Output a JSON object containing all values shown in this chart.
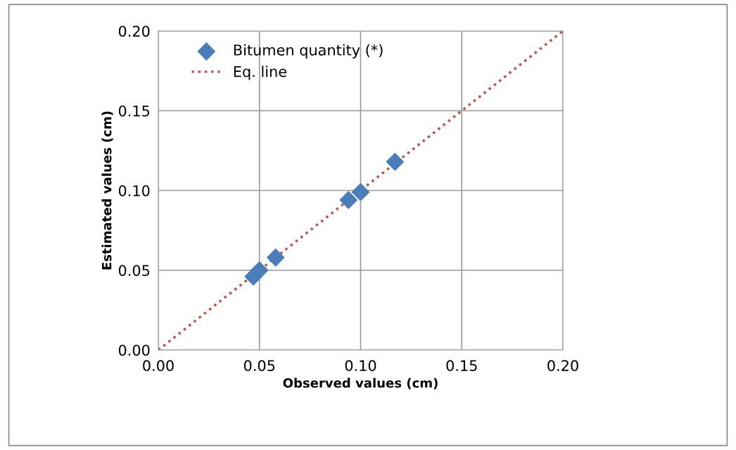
{
  "chart_data": {
    "type": "scatter",
    "xlabel": "Observed values (cm)",
    "ylabel": "Estimated values (cm)",
    "series": [
      {
        "name": "Bitumen quantity (*)",
        "color": "#4a7ebb",
        "marker": "diamond",
        "x": [
          0.047,
          0.05,
          0.058,
          0.094,
          0.1,
          0.117
        ],
        "values": [
          0.046,
          0.05,
          0.058,
          0.094,
          0.099,
          0.118
        ]
      },
      {
        "name": "Eq. line",
        "type": "line",
        "color": "#c0504d",
        "marker": "none",
        "line_style": "dotted",
        "x": [
          0.0,
          0.2
        ],
        "values": [
          0.0,
          0.2
        ]
      }
    ],
    "xlim": [
      0,
      0.2
    ],
    "ylim": [
      0,
      0.2
    ],
    "xticks": [
      {
        "value": 0,
        "label": "0.00"
      },
      {
        "value": 0.05,
        "label": "0.05"
      },
      {
        "value": 0.1,
        "label": "0.10"
      },
      {
        "value": 0.15,
        "label": "0.15"
      },
      {
        "value": 0.2,
        "label": "0.20"
      }
    ],
    "yticks": [
      {
        "value": 0,
        "label": "0.00"
      },
      {
        "value": 0.05,
        "label": "0.05"
      },
      {
        "value": 0.1,
        "label": "0.10"
      },
      {
        "value": 0.15,
        "label": "0.15"
      },
      {
        "value": 0.2,
        "label": "0.20"
      }
    ],
    "grid": true,
    "legend": "top left"
  }
}
